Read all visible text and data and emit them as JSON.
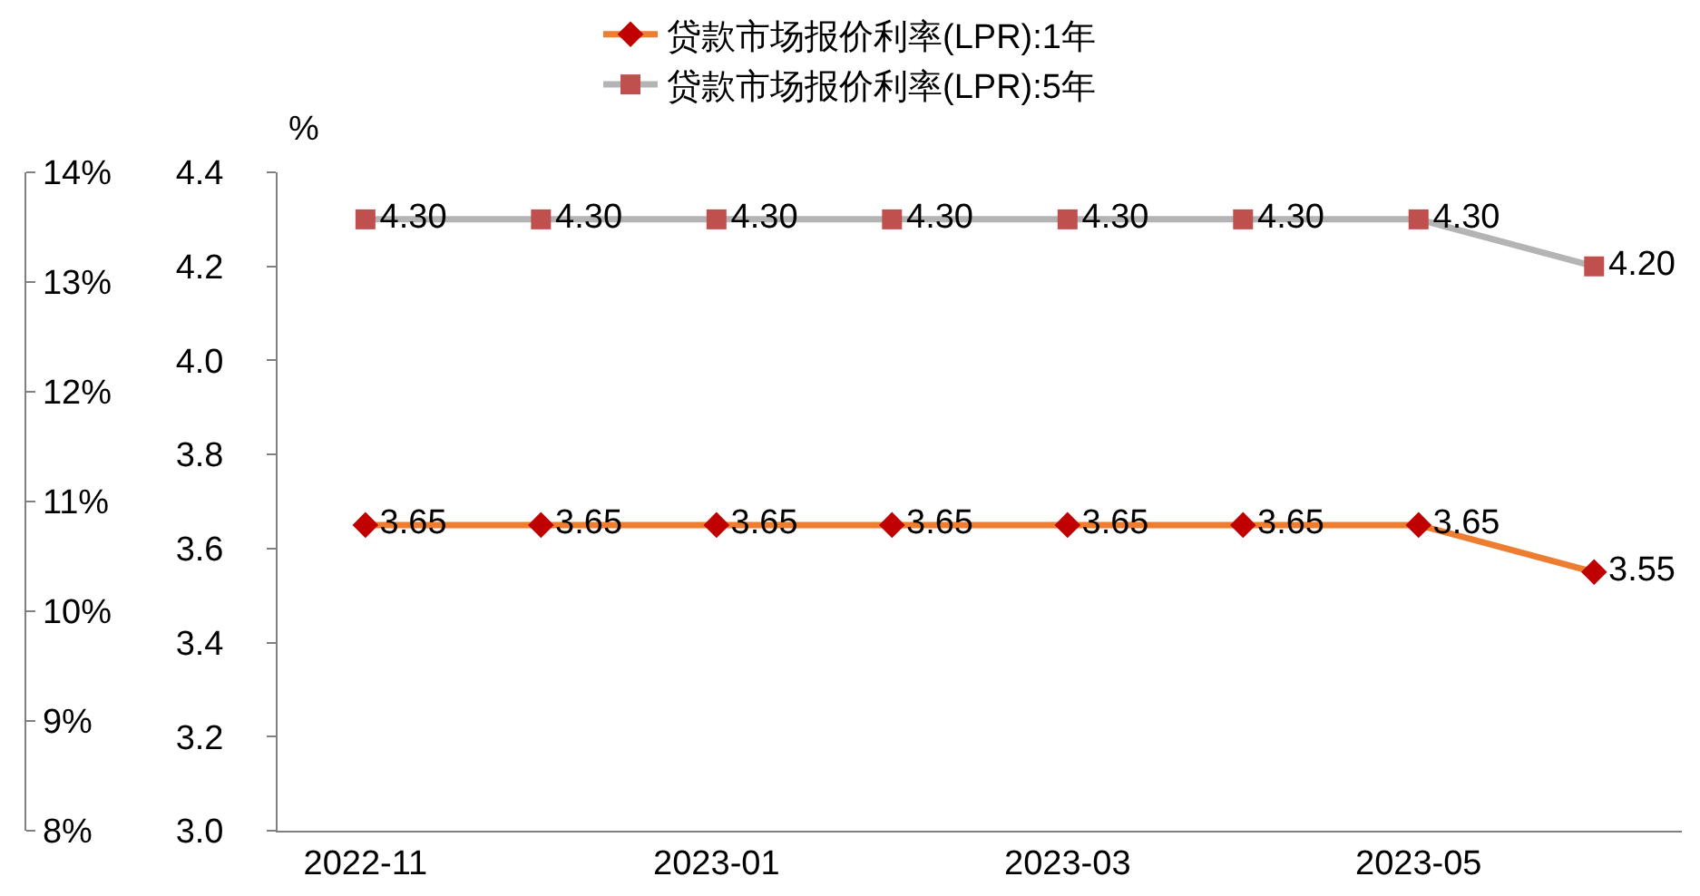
{
  "chart_data": {
    "type": "line",
    "ylabel": "%",
    "categories": [
      "2022-11",
      null,
      "2023-01",
      null,
      "2023-03",
      null,
      "2023-05",
      null
    ],
    "series": [
      {
        "name": "贷款市场报价利率(LPR):1年",
        "color": "#ed7d31",
        "colors": [
          "#c00000",
          "#c00000",
          "#c00000",
          "#c00000",
          "#c00000",
          "#c00000",
          "#c00000",
          "#c00000"
        ],
        "values": [
          3.65,
          3.65,
          3.65,
          3.65,
          3.65,
          3.65,
          3.65,
          3.55
        ],
        "value_labels": [
          "3.65",
          "3.65",
          "3.65",
          "3.65",
          "3.65",
          "3.65",
          "3.65",
          "3.55"
        ]
      },
      {
        "name": "贷款市场报价利率(LPR):5年",
        "color": "#b4b4b4",
        "colors": [
          "#c0504d",
          "#c0504d",
          "#c0504d",
          "#c0504d",
          "#c0504d",
          "#c0504d",
          "#c0504d",
          "#c0504d"
        ],
        "values": [
          4.3,
          4.3,
          4.3,
          4.3,
          4.3,
          4.3,
          4.3,
          4.2
        ],
        "value_labels": [
          "4.30",
          "4.30",
          "4.30",
          "4.30",
          "4.30",
          "4.30",
          "4.30",
          "4.20"
        ],
        "marker": "square"
      }
    ],
    "marker": "diamond",
    "line_style": "solid",
    "grid": false,
    "legend": "top",
    "ylim": [
      3.0,
      4.4
    ],
    "yticks": [
      {
        "value": 3,
        "label": "3.0"
      },
      {
        "value": 3.2,
        "label": "3.2"
      },
      {
        "value": 3.4,
        "label": "3.4"
      },
      {
        "value": 3.6,
        "label": "3.6"
      },
      {
        "value": 3.8,
        "label": "3.8"
      },
      {
        "value": 4,
        "label": "4.0"
      },
      {
        "value": 4.2,
        "label": "4.2"
      },
      {
        "value": 4.4,
        "label": "4.4"
      }
    ],
    "y2lim": [
      8,
      14
    ],
    "y2ticks": [
      {
        "value": 8,
        "label": "8%"
      },
      {
        "value": 9,
        "label": "9%"
      },
      {
        "value": 10,
        "label": "10%"
      },
      {
        "value": 11,
        "label": "11%"
      },
      {
        "value": 12,
        "label": "12%"
      },
      {
        "value": 13,
        "label": "13%"
      },
      {
        "value": 14,
        "label": "14%"
      }
    ]
  }
}
